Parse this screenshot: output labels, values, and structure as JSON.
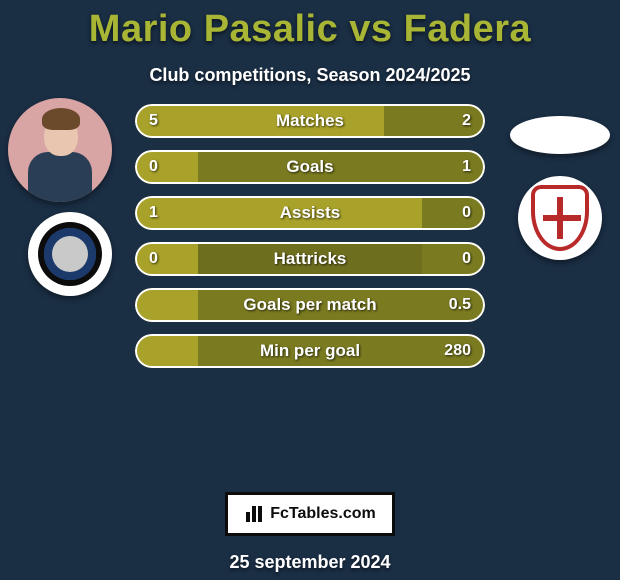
{
  "title_color": "#a8b535",
  "title": "Mario Pasalic vs Fadera",
  "subtitle": "Club competitions, Season 2024/2025",
  "date": "25 september 2024",
  "brand_text": "FcTables.com",
  "colors": {
    "background": "#1a2e44",
    "bar_left": "#a8a22a",
    "bar_right": "#7a7a21",
    "bar_track": "#6e6e1f",
    "bar_border": "#ffffff",
    "text": "#ffffff"
  },
  "bars": [
    {
      "label": "Matches",
      "left": "5",
      "right": "2",
      "left_frac": 0.71,
      "right_frac": 0.29
    },
    {
      "label": "Goals",
      "left": "0",
      "right": "1",
      "left_frac": 0.18,
      "right_frac": 0.82
    },
    {
      "label": "Assists",
      "left": "1",
      "right": "0",
      "left_frac": 0.82,
      "right_frac": 0.18
    },
    {
      "label": "Hattricks",
      "left": "0",
      "right": "0",
      "left_frac": 0.18,
      "right_frac": 0.18
    },
    {
      "label": "Goals per match",
      "left": "",
      "right": "0.5",
      "left_frac": 0.18,
      "right_frac": 0.82
    },
    {
      "label": "Min per goal",
      "left": "",
      "right": "280",
      "left_frac": 0.18,
      "right_frac": 0.82
    }
  ],
  "bar_style": {
    "height": 34,
    "gap": 12,
    "radius": 17,
    "label_fontsize": 17,
    "value_fontsize": 16
  }
}
